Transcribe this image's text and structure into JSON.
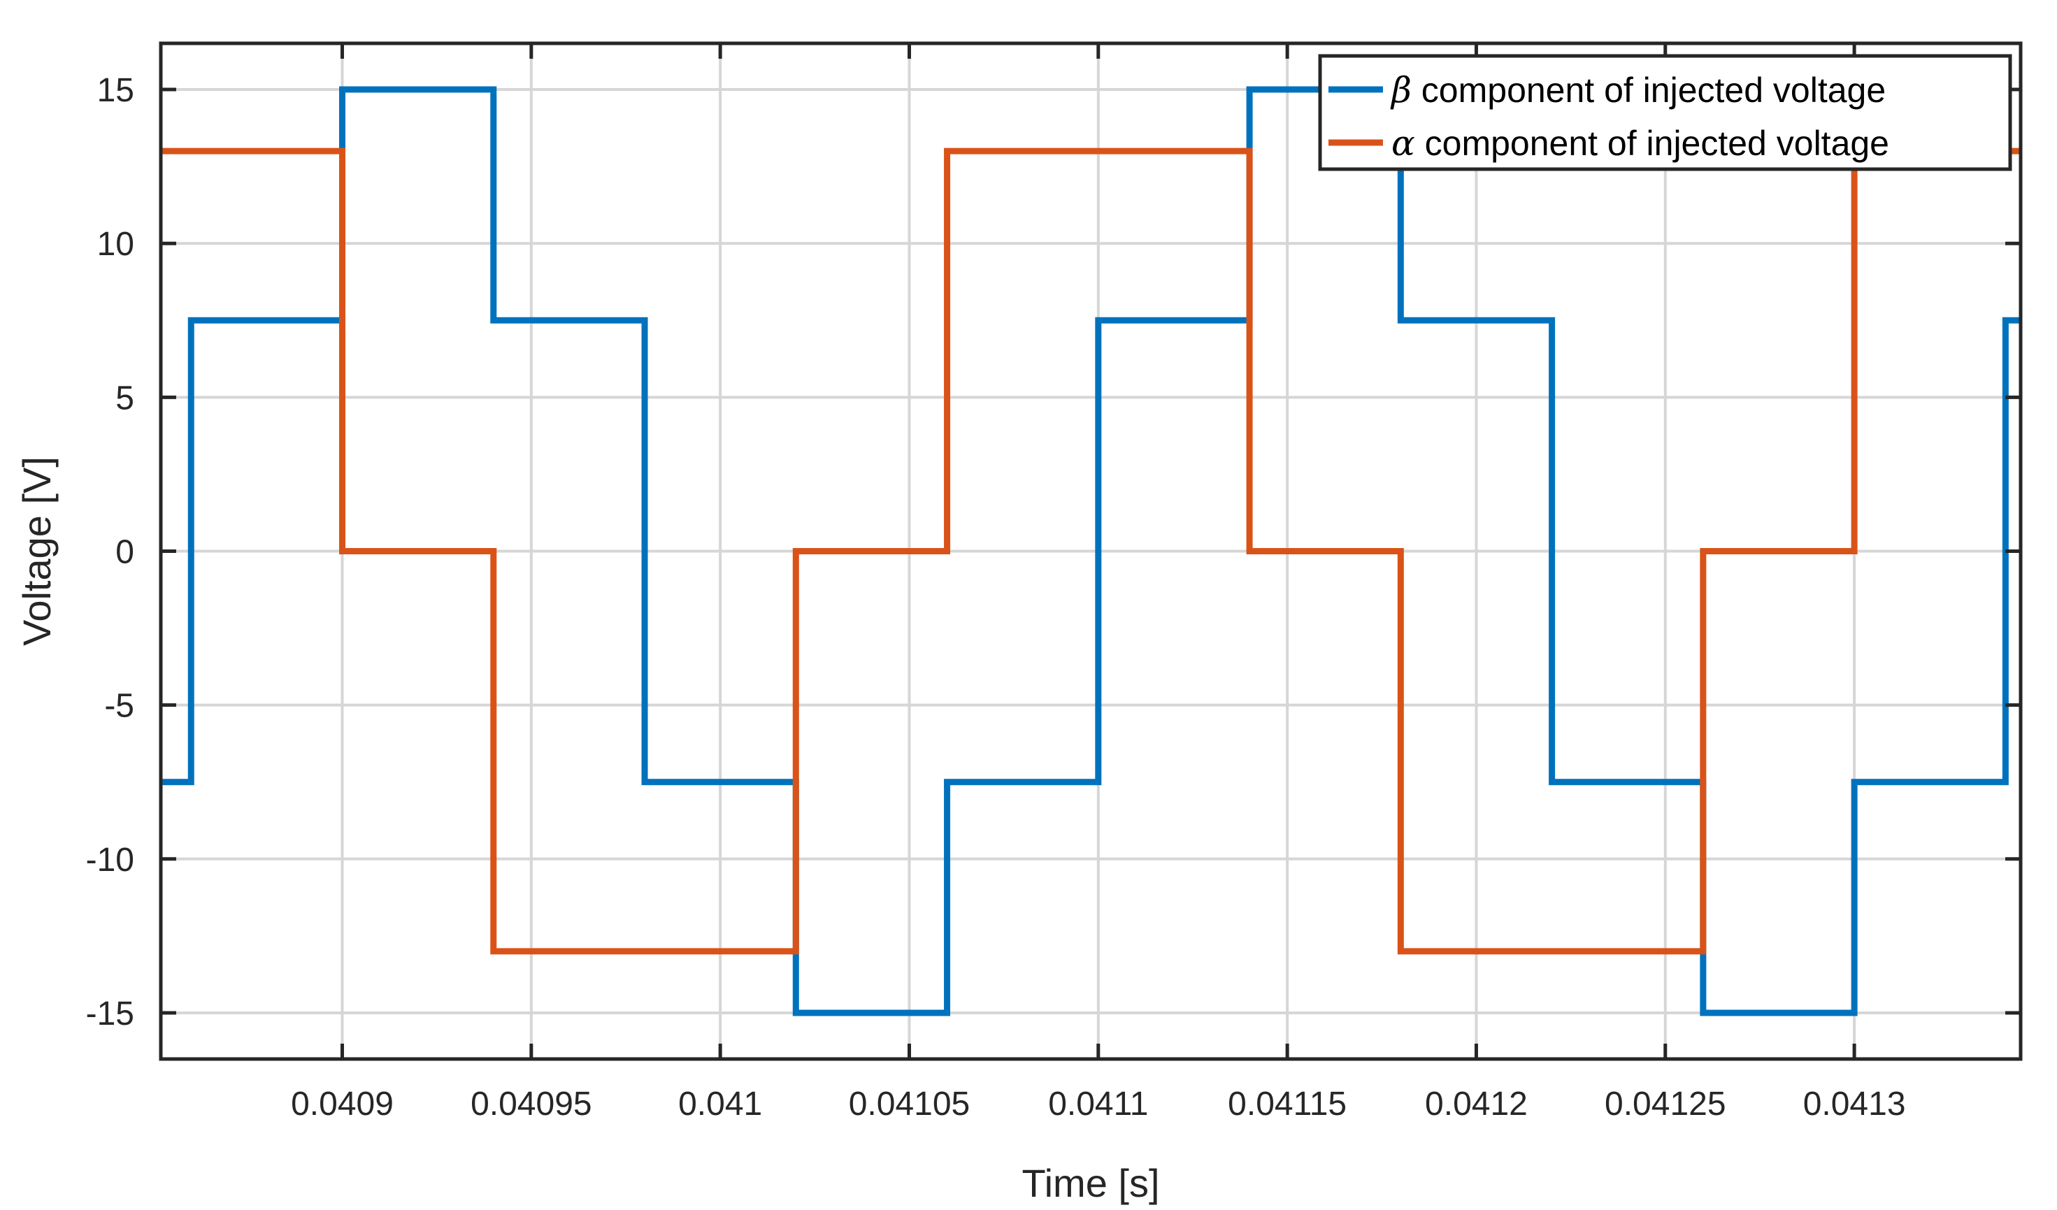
{
  "chart_data": {
    "type": "line",
    "step": true,
    "title": "",
    "xlabel": "Time [s]",
    "ylabel": "Voltage [V]",
    "xlim": [
      0.040852,
      0.041344
    ],
    "ylim": [
      -16.5,
      16.5
    ],
    "grid": true,
    "legend_position": "top-right",
    "x_ticks": [
      0.0409,
      0.04095,
      0.041,
      0.04105,
      0.0411,
      0.04115,
      0.0412,
      0.04125,
      0.0413
    ],
    "x_tick_labels": [
      "0.0409",
      "0.04095",
      "0.041",
      "0.04105",
      "0.0411",
      "0.04115",
      "0.0412",
      "0.04125",
      "0.0413"
    ],
    "y_ticks": [
      -15,
      -10,
      -5,
      0,
      5,
      10,
      15
    ],
    "y_tick_labels": [
      "-15",
      "-10",
      "-5",
      "0",
      "5",
      "10",
      "15"
    ],
    "series": [
      {
        "name_symbol": "β",
        "name_text": " component of injected voltage",
        "color": "#0072BD",
        "x": [
          0.040852,
          0.04086,
          0.0409,
          0.04094,
          0.04098,
          0.04102,
          0.04106,
          0.0411,
          0.04114,
          0.04118,
          0.04122,
          0.04126,
          0.0413,
          0.04134,
          0.041344
        ],
        "y": [
          -7.5,
          7.5,
          15,
          7.5,
          -7.5,
          -15,
          -7.5,
          7.5,
          15,
          7.5,
          -7.5,
          -15,
          -7.5,
          7.5,
          7.5
        ]
      },
      {
        "name_symbol": "α",
        "name_text": " component of injected voltage",
        "color": "#D95319",
        "x": [
          0.040852,
          0.0409,
          0.04094,
          0.04102,
          0.04106,
          0.04114,
          0.04118,
          0.04126,
          0.0413,
          0.041344
        ],
        "y": [
          13,
          0,
          -13,
          0,
          13,
          0,
          -13,
          0,
          13,
          13
        ]
      }
    ]
  }
}
